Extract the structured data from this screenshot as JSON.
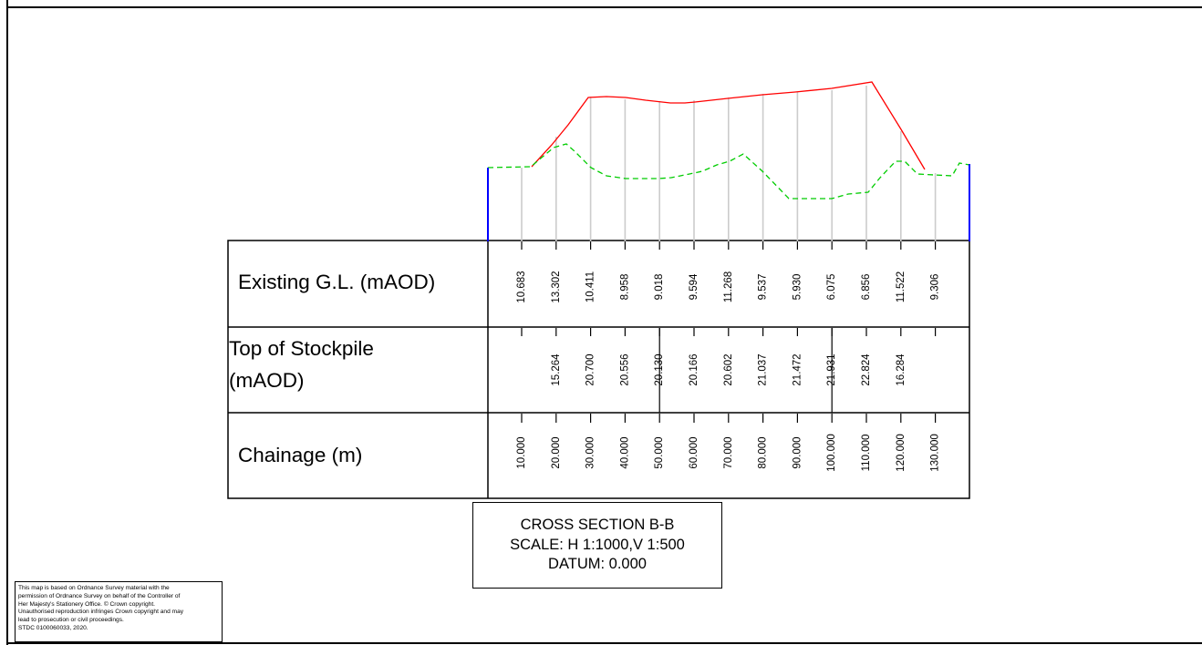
{
  "labels": {
    "existing_gl": "Existing G.L. (mAOD)",
    "stockpile_line1": "Top of Stockpile",
    "stockpile_line2": "(mAOD)",
    "chainage": "Chainage (m)"
  },
  "title": {
    "line1": "CROSS SECTION B-B",
    "line2": "SCALE: H 1:1000,V 1:500",
    "line3": "DATUM: 0.000"
  },
  "copyright": [
    "This map is based on Ordnance Survey material with the",
    "permission of Ordnance Survey on behalf of the Controller of",
    "Her Majesty's Stationery Office. © Crown copyright.",
    "Unauthorised reproduction infringes Crown copyright and may",
    "lead to prosecution or civil proceedings.",
    "STDC 0100060033, 2020."
  ],
  "section": {
    "chainages": [
      "10.000",
      "20.000",
      "30.000",
      "40.000",
      "50.000",
      "60.000",
      "70.000",
      "80.000",
      "90.000",
      "100.000",
      "110.000",
      "120.000",
      "130.000"
    ],
    "existing_gl": [
      "10.683",
      "13.302",
      "10.411",
      "8.958",
      "9.018",
      "9.594",
      "11.268",
      "9.537",
      "5.930",
      "6.075",
      "6.856",
      "11.522",
      "9.306"
    ],
    "stockpile": [
      "",
      "15.264",
      "20.700",
      "20.556",
      "20.130",
      "20.166",
      "20.602",
      "21.037",
      "21.472",
      "21.931",
      "22.824",
      "16.284",
      ""
    ],
    "colors": {
      "stockpile_line": "#ff0000",
      "ground_line": "#00cc00",
      "section_ends": "#0000ff",
      "grid": "#cccccc"
    }
  }
}
